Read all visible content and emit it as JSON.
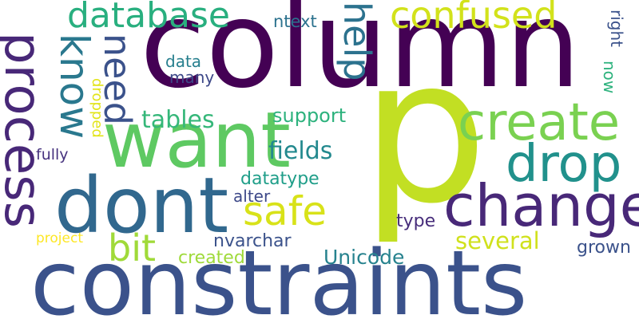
{
  "words": [
    {
      "id": "column",
      "text": "column",
      "color": "#440154"
    },
    {
      "id": "p",
      "text": "p",
      "color": "#c2df23"
    },
    {
      "id": "constraints",
      "text": "constraints",
      "color": "#3b528b"
    },
    {
      "id": "want",
      "text": "want",
      "color": "#5ec962"
    },
    {
      "id": "dont",
      "text": "dont",
      "color": "#31688e"
    },
    {
      "id": "process",
      "text": "process",
      "color": "#482878"
    },
    {
      "id": "change",
      "text": "change",
      "color": "#482878"
    },
    {
      "id": "create",
      "text": "create",
      "color": "#7ad151"
    },
    {
      "id": "drop",
      "text": "drop",
      "color": "#21918c"
    },
    {
      "id": "database",
      "text": "database",
      "color": "#29af7f"
    },
    {
      "id": "confused",
      "text": "confused",
      "color": "#d2e21b"
    },
    {
      "id": "know",
      "text": "know",
      "color": "#2a788e"
    },
    {
      "id": "need",
      "text": "need",
      "color": "#3b528b"
    },
    {
      "id": "help",
      "text": "help",
      "color": "#2c728e"
    },
    {
      "id": "safe",
      "text": "safe",
      "color": "#d8e219"
    },
    {
      "id": "bit",
      "text": "bit",
      "color": "#a0da39"
    },
    {
      "id": "tables",
      "text": "tables",
      "color": "#35b779"
    },
    {
      "id": "fields",
      "text": "fields",
      "color": "#23898e"
    },
    {
      "id": "several",
      "text": "several",
      "color": "#d0e11c"
    },
    {
      "id": "support",
      "text": "support",
      "color": "#2db27d"
    },
    {
      "id": "unicode",
      "text": "Unicode",
      "color": "#26828e"
    },
    {
      "id": "datatype",
      "text": "datatype",
      "color": "#1f9e89"
    },
    {
      "id": "alter",
      "text": "alter",
      "color": "#3e4989"
    },
    {
      "id": "nvarchar",
      "text": "nvarchar",
      "color": "#3b528b"
    },
    {
      "id": "created",
      "text": "created",
      "color": "#9fda3a"
    },
    {
      "id": "project",
      "text": "project",
      "color": "#fde725"
    },
    {
      "id": "fully",
      "text": "fully",
      "color": "#46327e"
    },
    {
      "id": "data",
      "text": "data",
      "color": "#277f8e"
    },
    {
      "id": "many",
      "text": "many",
      "color": "#3e4989"
    },
    {
      "id": "dropped",
      "text": "dropped",
      "color": "#e2e418"
    },
    {
      "id": "ntext",
      "text": "ntext",
      "color": "#2c728e"
    },
    {
      "id": "right",
      "text": "right",
      "color": "#3b528b"
    },
    {
      "id": "now",
      "text": "now",
      "color": "#2db27d"
    },
    {
      "id": "type",
      "text": "type",
      "color": "#472d7b"
    },
    {
      "id": "grown",
      "text": "grown",
      "color": "#3b528b"
    },
    {
      "id": "rightbig",
      "text": "right",
      "color": "#2c728e"
    }
  ]
}
